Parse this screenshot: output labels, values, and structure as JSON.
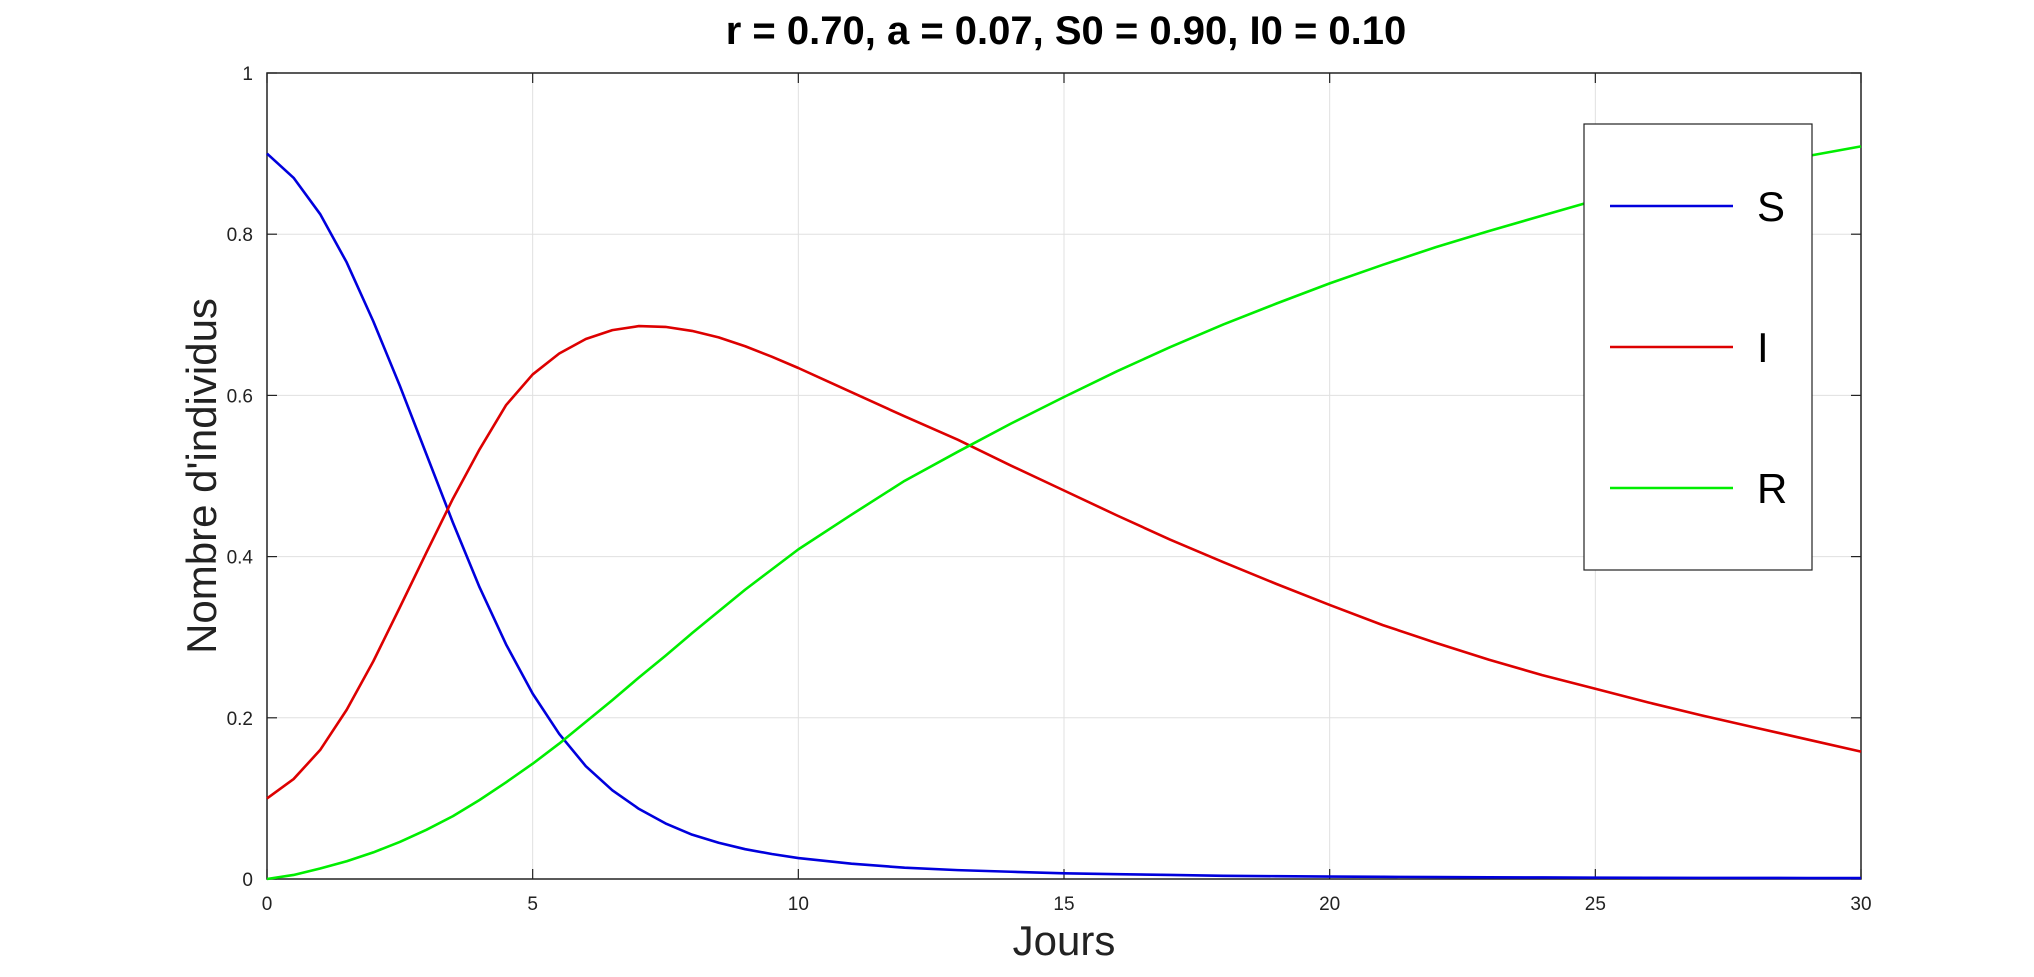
{
  "chart_data": {
    "type": "line",
    "title": "r = 0.70, a = 0.07, S0 = 0.90, I0 = 0.10",
    "xlabel": "Jours",
    "ylabel": "Nombre d'individus",
    "xlim": [
      0,
      30
    ],
    "ylim": [
      0,
      1
    ],
    "xticks": [
      0,
      5,
      10,
      15,
      20,
      25,
      30
    ],
    "yticks": [
      0,
      0.2,
      0.4,
      0.6,
      0.8,
      1
    ],
    "xtick_labels": [
      "0",
      "5",
      "10",
      "15",
      "20",
      "25",
      "30"
    ],
    "ytick_labels": [
      "0",
      "0.2",
      "0.4",
      "0.6",
      "0.8",
      "1"
    ],
    "grid": true,
    "legend_position": "top-right",
    "x": [
      0,
      0.5,
      1,
      1.5,
      2,
      2.5,
      3,
      3.5,
      4,
      4.5,
      5,
      5.5,
      6,
      6.5,
      7,
      7.5,
      8,
      8.5,
      9,
      9.5,
      10,
      11,
      12,
      13,
      14,
      15,
      16,
      17,
      18,
      19,
      20,
      21,
      22,
      23,
      24,
      25,
      26,
      27,
      28,
      29,
      30
    ],
    "series": [
      {
        "name": "S",
        "color": "#0000dd",
        "values": [
          0.9,
          0.87,
          0.825,
          0.765,
          0.692,
          0.612,
          0.527,
          0.442,
          0.362,
          0.291,
          0.23,
          0.18,
          0.14,
          0.11,
          0.087,
          0.069,
          0.055,
          0.045,
          0.037,
          0.031,
          0.026,
          0.019,
          0.014,
          0.011,
          0.009,
          0.007,
          0.006,
          0.005,
          0.004,
          0.0035,
          0.003,
          0.0027,
          0.0024,
          0.0021,
          0.0019,
          0.0017,
          0.0015,
          0.0014,
          0.0013,
          0.0012,
          0.0011
        ]
      },
      {
        "name": "I",
        "color": "#dd0000",
        "values": [
          0.1,
          0.124,
          0.16,
          0.21,
          0.27,
          0.337,
          0.405,
          0.472,
          0.533,
          0.588,
          0.626,
          0.652,
          0.67,
          0.681,
          0.686,
          0.685,
          0.68,
          0.672,
          0.661,
          0.648,
          0.634,
          0.604,
          0.574,
          0.545,
          0.513,
          0.482,
          0.451,
          0.421,
          0.393,
          0.366,
          0.34,
          0.315,
          0.293,
          0.272,
          0.253,
          0.236,
          0.219,
          0.203,
          0.188,
          0.173,
          0.158
        ]
      },
      {
        "name": "R",
        "color": "#00ee00",
        "values": [
          0.0,
          0.005,
          0.013,
          0.022,
          0.033,
          0.046,
          0.061,
          0.078,
          0.098,
          0.12,
          0.143,
          0.168,
          0.195,
          0.222,
          0.25,
          0.277,
          0.305,
          0.332,
          0.359,
          0.384,
          0.409,
          0.452,
          0.494,
          0.53,
          0.565,
          0.598,
          0.63,
          0.66,
          0.688,
          0.714,
          0.739,
          0.762,
          0.784,
          0.804,
          0.823,
          0.842,
          0.858,
          0.872,
          0.885,
          0.897,
          0.909
        ]
      }
    ]
  }
}
